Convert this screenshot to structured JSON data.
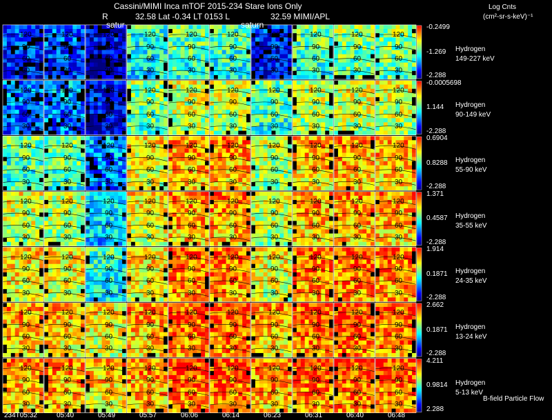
{
  "header": {
    "line1": "Cassini/MIMI Inca mTOF  2015-234   Stare   Ions Only",
    "line2_r": "R",
    "line2_rest": "32.58 Lat -0.34 LT 0153 L",
    "line2_l": "32.59   MIMI/APL",
    "units_title": "Log Cnts",
    "units": "(cm²-sr-s-keV)⁻¹"
  },
  "annotations": {
    "saturn_left": "satur",
    "saturn_right": "saturn",
    "bfield": "B-field Particle Flow"
  },
  "chart_data": {
    "type": "heatmap",
    "title": "Cassini/MIMI Inca mTOF  2015-234   Stare   Ions Only",
    "times": [
      "234T05:32",
      "05:40",
      "05:49",
      "05:57",
      "06:06",
      "06:14",
      "06:23",
      "06:31",
      "06:40",
      "06:48"
    ],
    "contour_labels": [
      "120",
      "90",
      "60",
      "30"
    ],
    "colormap": [
      "#000080",
      "#0000ff",
      "#0080ff",
      "#00ffff",
      "#80ff80",
      "#ffff00",
      "#ff8000",
      "#ff0000"
    ],
    "rows": [
      {
        "species": "Hydrogen",
        "energy": "149-227 keV",
        "cmax": "-0.2499",
        "cmid": "-1.269",
        "cmin": "-2.288",
        "levels": [
          0.18,
          0.22,
          0.08,
          0.45,
          0.5,
          0.48,
          0.15,
          0.5,
          0.55,
          0.55
        ]
      },
      {
        "species": "Hydrogen",
        "energy": "90-149 keV",
        "cmax": "-0.0005698",
        "cmid": "1.144",
        "cmin": "-2.288",
        "levels": [
          0.25,
          0.3,
          0.12,
          0.55,
          0.65,
          0.62,
          0.5,
          0.62,
          0.65,
          0.65
        ]
      },
      {
        "species": "Hydrogen",
        "energy": "55-90 keV",
        "cmax": "0.6904",
        "cmid": "0.8288",
        "cmin": "-2.288",
        "levels": [
          0.5,
          0.52,
          0.3,
          0.7,
          0.8,
          0.8,
          0.6,
          0.78,
          0.8,
          0.78
        ]
      },
      {
        "species": "Hydrogen",
        "energy": "35-55 keV",
        "cmax": "1.371",
        "cmid": "0.4587",
        "cmin": "-2.288",
        "levels": [
          0.65,
          0.62,
          0.4,
          0.7,
          0.8,
          0.8,
          0.65,
          0.78,
          0.8,
          0.78
        ]
      },
      {
        "species": "Hydrogen",
        "energy": "24-35 keV",
        "cmax": "1.914",
        "cmid": "0.1871",
        "cmin": "-2.288",
        "levels": [
          0.72,
          0.7,
          0.45,
          0.72,
          0.85,
          0.84,
          0.68,
          0.84,
          0.86,
          0.84
        ]
      },
      {
        "species": "Hydrogen",
        "energy": "13-24 keV",
        "cmax": "2.662",
        "cmid": "0.1871",
        "cmin": "-2.288",
        "levels": [
          0.78,
          0.76,
          0.7,
          0.78,
          0.88,
          0.88,
          0.78,
          0.86,
          0.88,
          0.87
        ]
      },
      {
        "species": "Hydrogen",
        "energy": "5-13 keV",
        "cmax": "4.211",
        "cmid": "0.9814",
        "cmin": "2.288",
        "levels": [
          0.8,
          0.8,
          0.76,
          0.8,
          0.88,
          0.88,
          0.8,
          0.88,
          0.88,
          0.88
        ]
      }
    ]
  }
}
